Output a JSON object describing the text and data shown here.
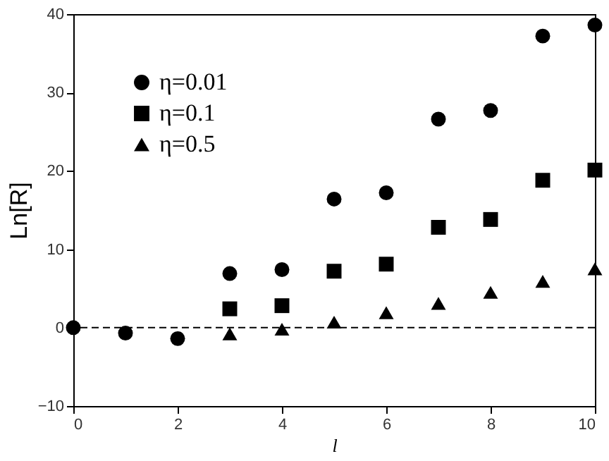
{
  "chart_data": {
    "type": "scatter",
    "xlabel": "l",
    "ylabel": "Ln[R]",
    "x": [
      0,
      1,
      2,
      3,
      4,
      5,
      6,
      7,
      8,
      9,
      10
    ],
    "series": [
      {
        "name": "η=0.01",
        "color": "#000000",
        "marker": "circle",
        "values": [
          0,
          -0.7,
          -1.4,
          6.9,
          7.4,
          16.4,
          17.2,
          26.6,
          27.7,
          37.2,
          38.6
        ]
      },
      {
        "name": "η=0.1",
        "color": "#000000",
        "marker": "square",
        "values": [
          null,
          null,
          null,
          2.4,
          2.8,
          7.2,
          8.1,
          12.8,
          13.8,
          18.8,
          20.1
        ]
      },
      {
        "name": "η=0.5",
        "color": "#000000",
        "marker": "triangle",
        "values": [
          null,
          null,
          null,
          -0.8,
          -0.2,
          0.7,
          1.9,
          3.1,
          4.5,
          5.9,
          7.5
        ]
      }
    ],
    "xlim": [
      0,
      10
    ],
    "xticks": [
      0,
      2,
      4,
      6,
      8,
      10
    ],
    "ylim": [
      -10,
      40
    ],
    "yticks": [
      -10,
      0,
      10,
      20,
      30,
      40
    ],
    "ref_lines": [
      {
        "axis": "y",
        "value": 0,
        "line_style": "dashed",
        "color": "#000000"
      }
    ],
    "grid": false,
    "legend": "top left"
  }
}
